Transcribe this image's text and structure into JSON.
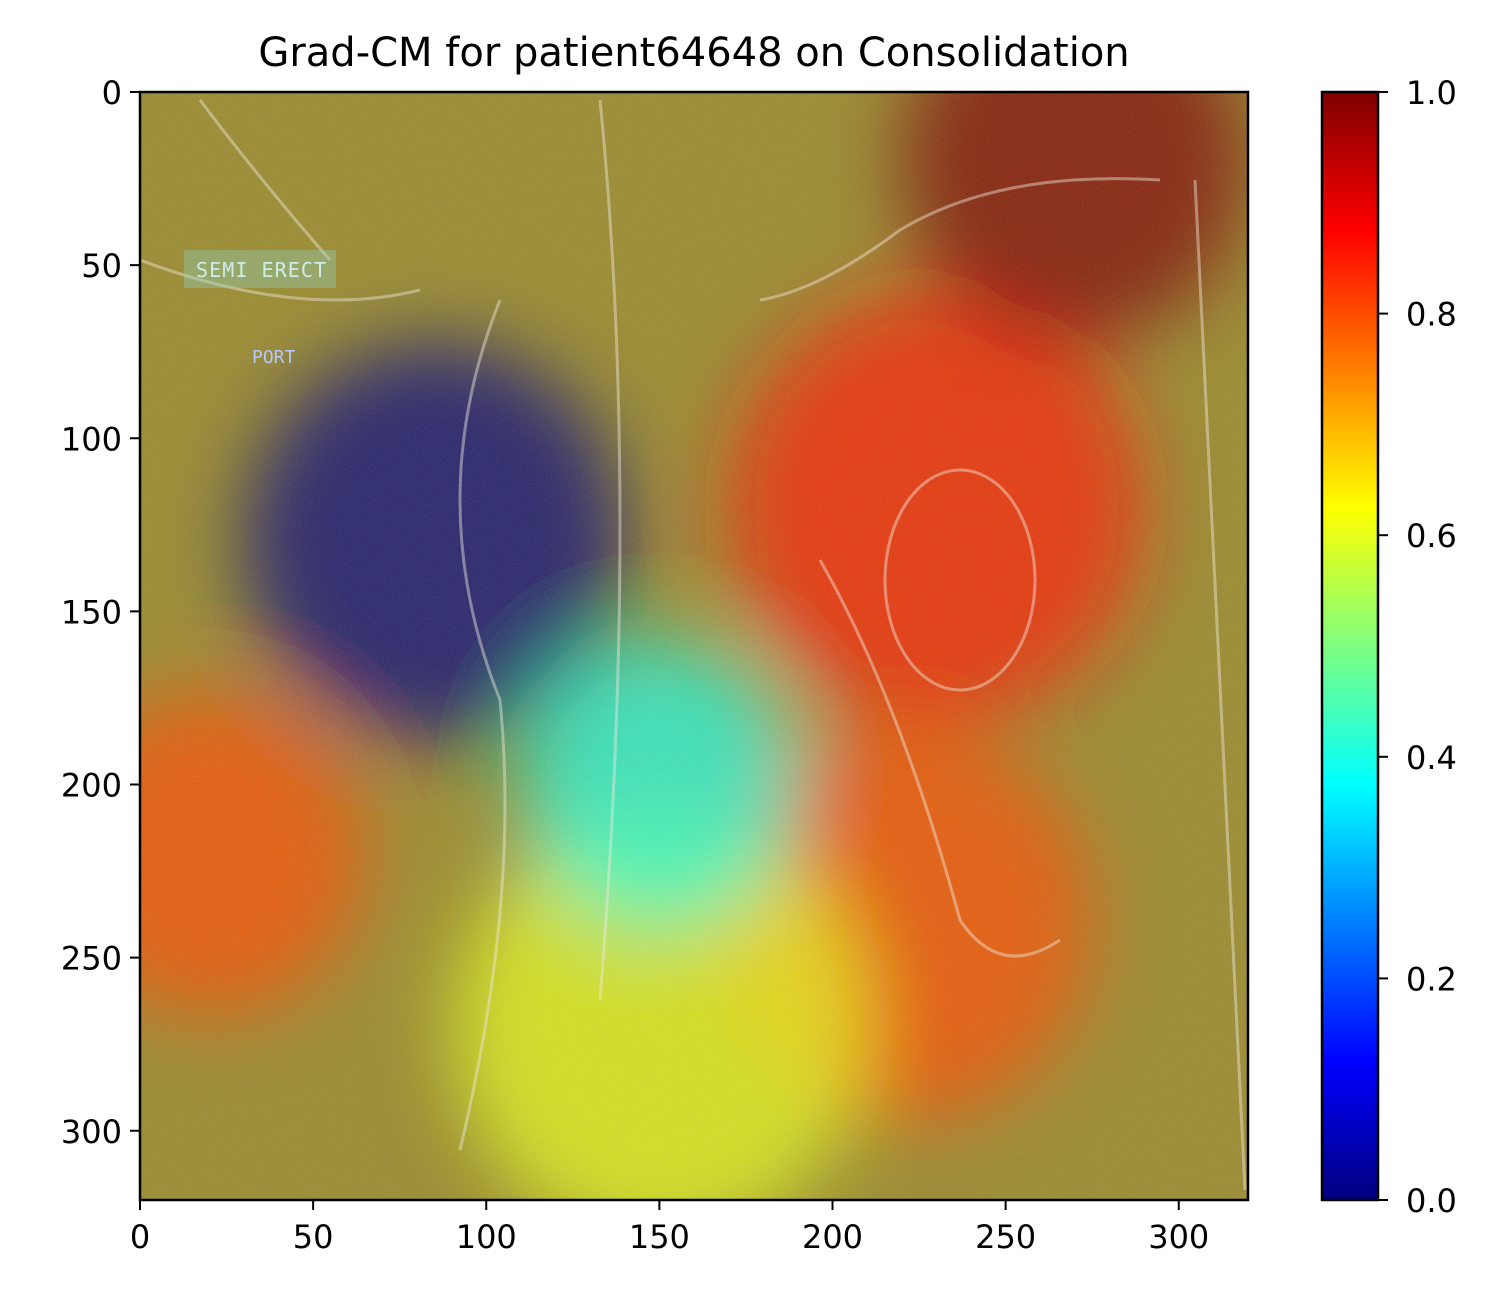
{
  "chart_data": {
    "type": "heatmap",
    "title": "Grad-CM for patient64648 on Consolidation",
    "xlabel": "",
    "ylabel": "",
    "xlim": [
      0,
      320
    ],
    "ylim": [
      320,
      0
    ],
    "x_ticks": [
      0,
      50,
      100,
      150,
      200,
      250,
      300
    ],
    "y_ticks": [
      0,
      50,
      100,
      150,
      200,
      250,
      300
    ],
    "colormap": "jet",
    "colorbar": {
      "range": [
        0,
        1
      ],
      "ticks": [
        "0.0",
        "0.2",
        "0.4",
        "0.6",
        "0.8",
        "1.0"
      ],
      "stops": [
        "#00007f",
        "#0000ff",
        "#007fff",
        "#00ffff",
        "#7fff7f",
        "#ffff00",
        "#ff7f00",
        "#ff0000",
        "#7f0000"
      ]
    },
    "image_labels": [
      "SEMI ERECT",
      "PORT"
    ],
    "heat_regions": [
      {
        "x": 85,
        "y": 130,
        "value": 0.0,
        "spread": 55
      },
      {
        "x": 230,
        "y": 120,
        "value": 0.85,
        "spread": 60
      },
      {
        "x": 270,
        "y": 20,
        "value": 1.0,
        "spread": 50
      },
      {
        "x": 220,
        "y": 240,
        "value": 0.8,
        "spread": 55
      },
      {
        "x": 20,
        "y": 220,
        "value": 0.8,
        "spread": 45
      },
      {
        "x": 150,
        "y": 270,
        "value": 0.6,
        "spread": 60
      },
      {
        "x": 150,
        "y": 200,
        "value": 0.4,
        "spread": 40
      }
    ]
  }
}
